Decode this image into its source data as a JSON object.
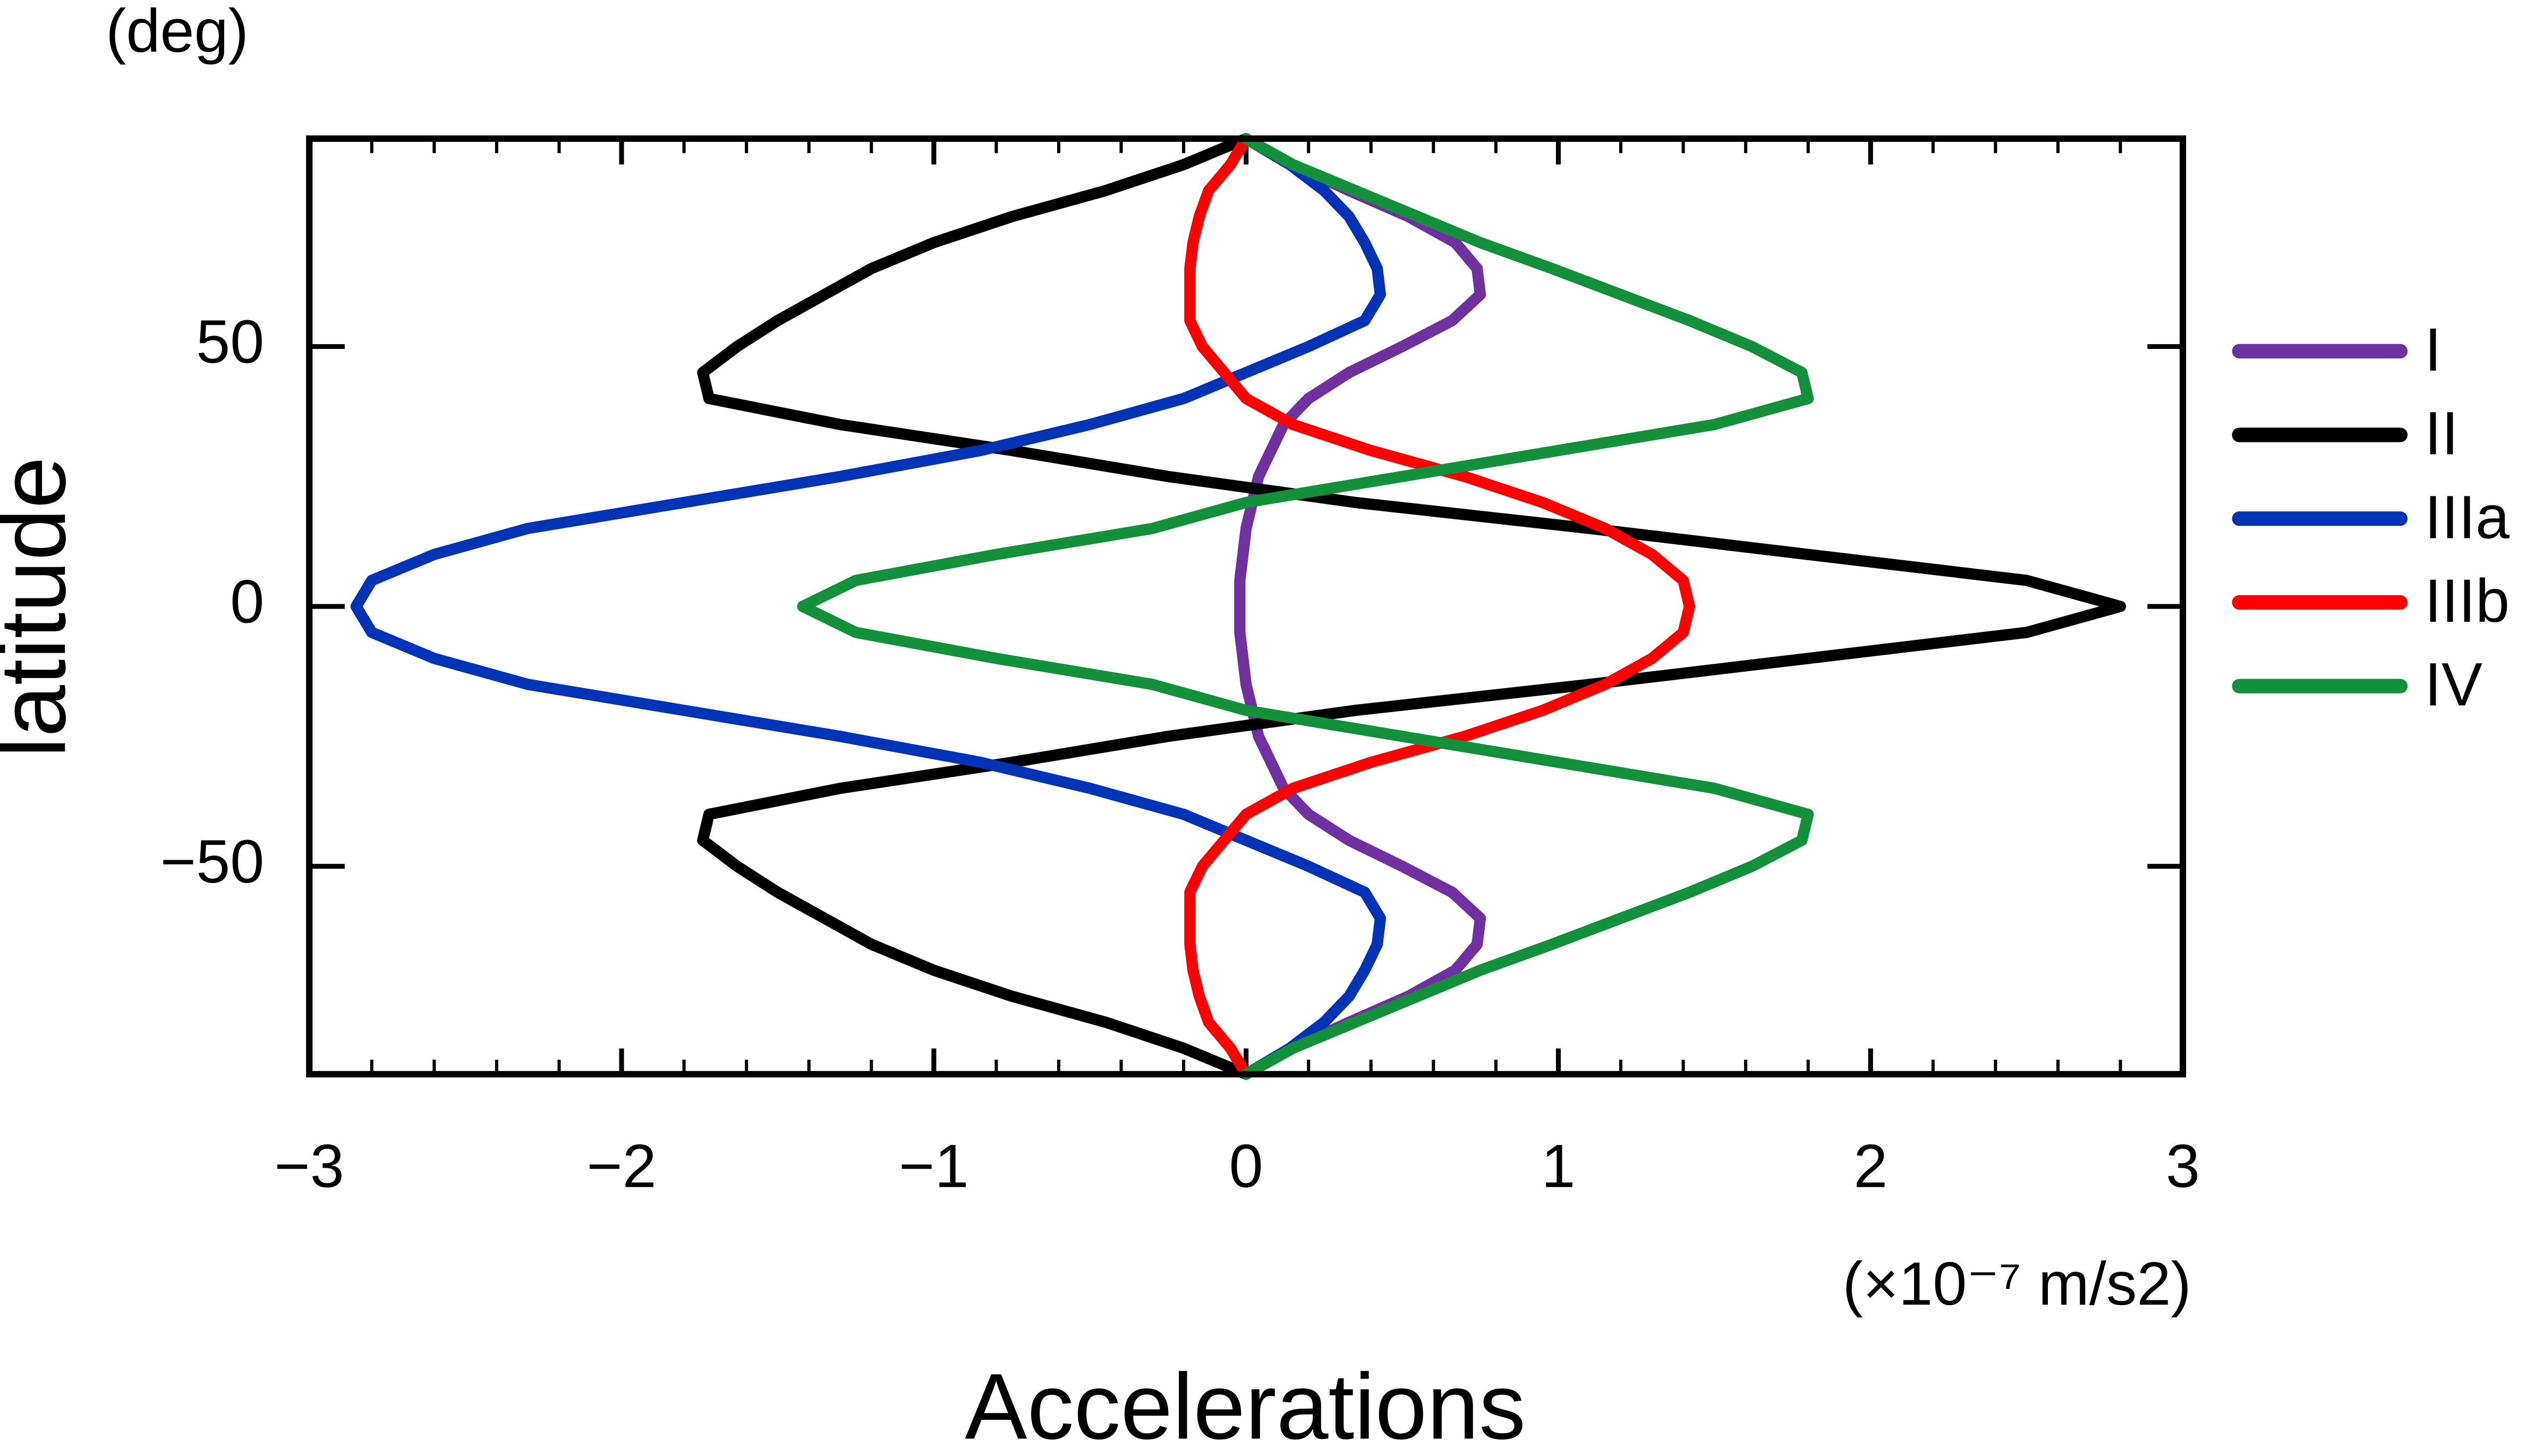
{
  "chart_data": {
    "type": "line",
    "orientation": "horizontal",
    "y_label_unit": "(deg)",
    "y_label": "latitude",
    "x_label": "Accelerations",
    "x_label_unit": "(×10⁻⁷ m/s2)",
    "xlim": [
      -3,
      3
    ],
    "ylim": [
      -90,
      90
    ],
    "xticks": [
      {
        "value": -3,
        "label": "−3"
      },
      {
        "value": -2,
        "label": "−2"
      },
      {
        "value": -1,
        "label": "−1"
      },
      0,
      1,
      2,
      3
    ],
    "xminorticks": [
      -2.8,
      -2.6,
      -2.4,
      -2.2,
      -1.8,
      -1.6,
      -1.4,
      -1.2,
      -0.8,
      -0.6,
      -0.4,
      -0.2,
      0.2,
      0.4,
      0.6,
      0.8,
      1.2,
      1.4,
      1.6,
      1.8,
      2.2,
      2.4,
      2.6,
      2.8
    ],
    "yticks": [
      {
        "value": -50,
        "label": "−50"
      },
      0,
      50
    ],
    "legend": "right",
    "y": [
      90,
      85,
      80,
      75,
      70,
      65,
      60,
      55,
      50,
      45,
      40,
      35,
      30,
      25,
      20,
      15,
      10,
      5,
      0,
      -5,
      -10,
      -15,
      -20,
      -25,
      -30,
      -35,
      -40,
      -45,
      -50,
      -55,
      -60,
      -65,
      -70,
      -75,
      -80,
      -85,
      -90
    ],
    "series": [
      {
        "name": "I",
        "color": "#7030a0",
        "values": [
          0,
          0.15,
          0.33,
          0.52,
          0.67,
          0.74,
          0.75,
          0.66,
          0.5,
          0.33,
          0.2,
          0.12,
          0.08,
          0.04,
          0.02,
          0.0,
          -0.01,
          -0.02,
          -0.02,
          -0.02,
          -0.01,
          0.0,
          0.02,
          0.04,
          0.08,
          0.12,
          0.2,
          0.33,
          0.5,
          0.66,
          0.75,
          0.74,
          0.67,
          0.52,
          0.33,
          0.15,
          0
        ]
      },
      {
        "name": "II",
        "color": "#000000",
        "values": [
          0,
          -0.2,
          -0.45,
          -0.75,
          -1.0,
          -1.2,
          -1.35,
          -1.5,
          -1.63,
          -1.74,
          -1.72,
          -1.3,
          -0.75,
          -0.25,
          0.35,
          1.1,
          1.8,
          2.5,
          2.8,
          2.5,
          1.8,
          1.1,
          0.35,
          -0.25,
          -0.75,
          -1.3,
          -1.72,
          -1.74,
          -1.63,
          -1.5,
          -1.35,
          -1.2,
          -1.0,
          -0.75,
          -0.45,
          -0.2,
          0
        ]
      },
      {
        "name": "IIIa",
        "color": "#0033b5",
        "values": [
          0,
          0.14,
          0.25,
          0.33,
          0.38,
          0.42,
          0.43,
          0.38,
          0.2,
          0.0,
          -0.2,
          -0.5,
          -0.85,
          -1.3,
          -1.8,
          -2.3,
          -2.6,
          -2.8,
          -2.85,
          -2.8,
          -2.6,
          -2.3,
          -1.8,
          -1.3,
          -0.85,
          -0.5,
          -0.2,
          0.0,
          0.2,
          0.38,
          0.43,
          0.42,
          0.38,
          0.33,
          0.25,
          0.14,
          0
        ]
      },
      {
        "name": "IIIb",
        "color": "#ff0000",
        "values": [
          0,
          -0.05,
          -0.12,
          -0.15,
          -0.17,
          -0.18,
          -0.18,
          -0.18,
          -0.14,
          -0.07,
          0.0,
          0.15,
          0.4,
          0.7,
          0.95,
          1.15,
          1.3,
          1.4,
          1.42,
          1.4,
          1.3,
          1.15,
          0.95,
          0.7,
          0.4,
          0.15,
          0.0,
          -0.07,
          -0.14,
          -0.18,
          -0.18,
          -0.18,
          -0.17,
          -0.15,
          -0.12,
          -0.05,
          0
        ]
      },
      {
        "name": "IV",
        "color": "#13913a",
        "values": [
          0,
          0.15,
          0.35,
          0.55,
          0.75,
          0.98,
          1.2,
          1.42,
          1.62,
          1.78,
          1.8,
          1.5,
          1.0,
          0.5,
          0.0,
          -0.3,
          -0.8,
          -1.25,
          -1.42,
          -1.25,
          -0.8,
          -0.3,
          0.0,
          0.5,
          1.0,
          1.5,
          1.8,
          1.78,
          1.62,
          1.42,
          1.2,
          0.98,
          0.75,
          0.55,
          0.35,
          0.15,
          0
        ]
      }
    ]
  }
}
